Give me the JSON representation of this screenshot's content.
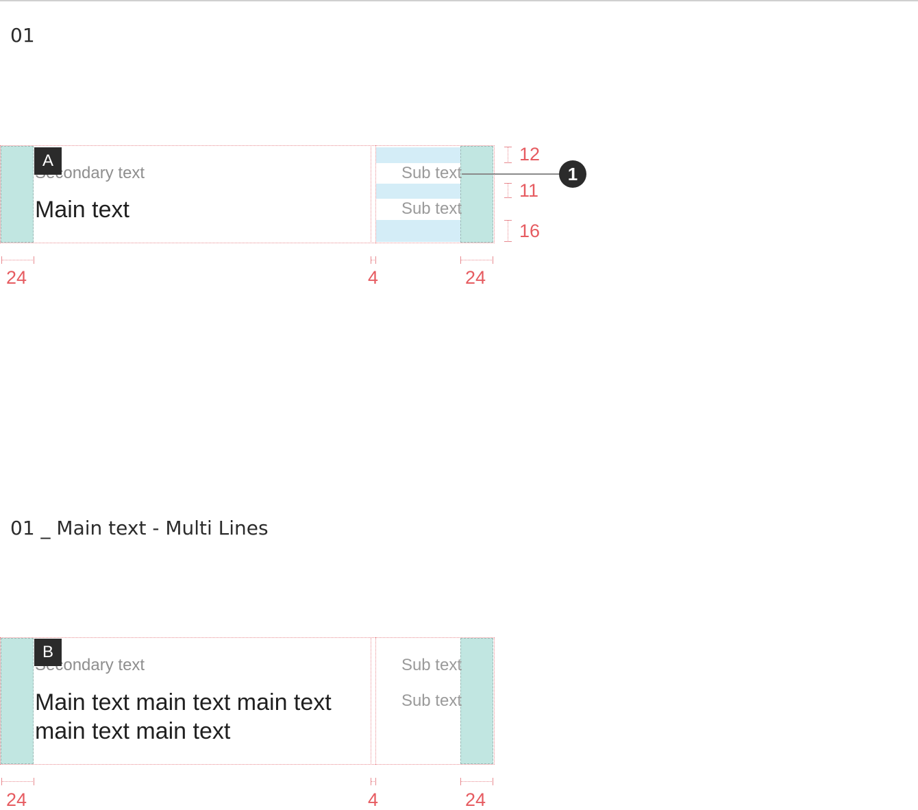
{
  "section1": {
    "title": "01",
    "badge": "A",
    "secondary_text": "Secondary text",
    "main_text": "Main text",
    "sub_texts": [
      "Sub text",
      "Sub text"
    ],
    "callout": "1",
    "vertical_dims": [
      "12",
      "11",
      "16"
    ],
    "horizontal_dims": [
      "24",
      "4",
      "24"
    ]
  },
  "section2": {
    "title": "01 _ Main text - Multi Lines",
    "badge": "B",
    "secondary_text": "Secondary text",
    "main_text": "Main text main text main text main text main text",
    "sub_texts": [
      "Sub text",
      "Sub text"
    ],
    "horizontal_dims": [
      "24",
      "4",
      "24"
    ]
  },
  "colors": {
    "padding_fill": "#c1e6e1",
    "spacing_fill": "#d4edf7",
    "dimension": "#e65b60",
    "badge": "#2b2b2b"
  }
}
